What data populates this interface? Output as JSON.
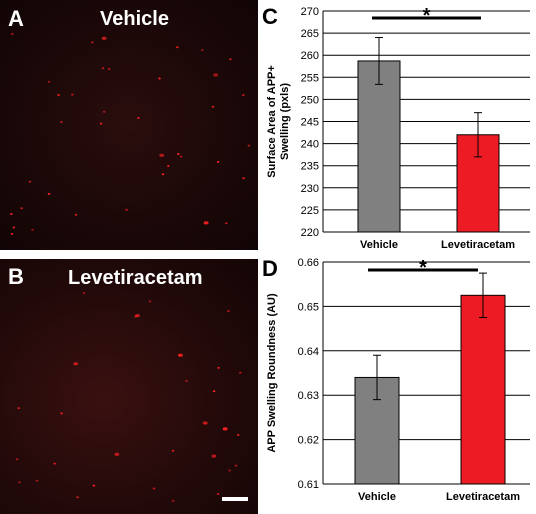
{
  "panels": {
    "A": {
      "letter": "A",
      "title": "Vehicle"
    },
    "B": {
      "letter": "B",
      "title": "Levetiracetam"
    }
  },
  "colors": {
    "vehicle_bar": "#808080",
    "levetiracetam_bar": "#ed1c24",
    "speck": "#ff2020",
    "grid": "#000000"
  },
  "chart_data": [
    {
      "panel": "C",
      "type": "bar",
      "categories": [
        "Vehicle",
        "Levetiracetam"
      ],
      "values": [
        258.7,
        242.0
      ],
      "errors": [
        5.3,
        5.0
      ],
      "ylabel": "Surface Area of APP+ Swelling (pxls)",
      "ylim": [
        220,
        270
      ],
      "yticks": [
        220,
        225,
        230,
        235,
        240,
        245,
        250,
        255,
        260,
        265,
        270
      ],
      "ytick_labels": [
        "220",
        "225",
        "230",
        "235",
        "240",
        "245",
        "250",
        "255",
        "260",
        "265",
        "270"
      ],
      "significance": "*",
      "grid": true,
      "bar_colors": [
        "#808080",
        "#ed1c24"
      ]
    },
    {
      "panel": "D",
      "type": "bar",
      "categories": [
        "Vehicle",
        "Levetiracetam"
      ],
      "values": [
        0.634,
        0.6525
      ],
      "errors": [
        0.005,
        0.005
      ],
      "ylabel": "APP Swelling Roundness (AU)",
      "ylim": [
        0.61,
        0.66
      ],
      "yticks": [
        0.61,
        0.62,
        0.63,
        0.64,
        0.65,
        0.66
      ],
      "ytick_labels": [
        "0.61",
        "0.62",
        "0.63",
        "0.64",
        "0.65",
        "0.66"
      ],
      "significance": "*",
      "grid": true,
      "bar_colors": [
        "#808080",
        "#ed1c24"
      ]
    }
  ]
}
